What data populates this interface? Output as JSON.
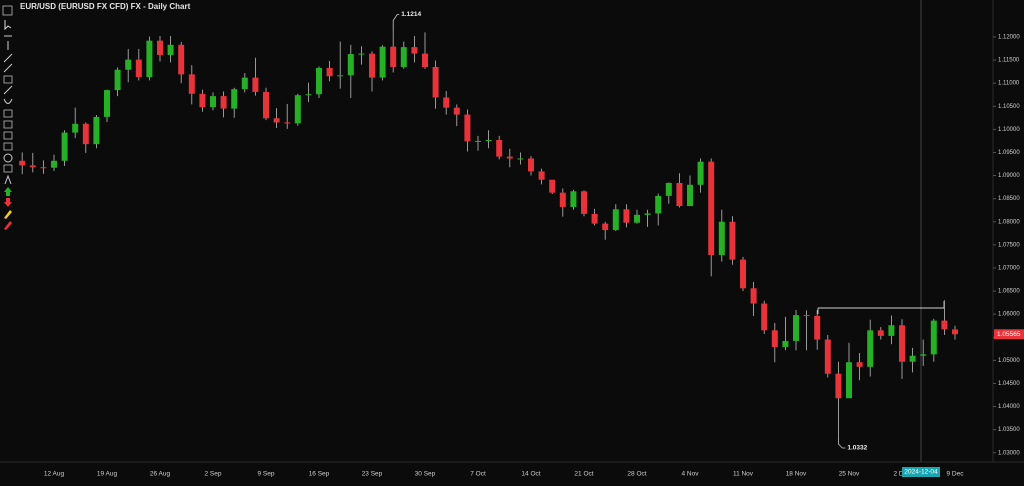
{
  "chart_data": {
    "type": "candlestick",
    "title": "EUR/USD (EURUSD FX CFD) FX - Daily Chart",
    "up_color": "#25b025",
    "down_color": "#e8333b",
    "categories": [
      null,
      null,
      null,
      "12 Aug",
      null,
      null,
      null,
      null,
      "19 Aug",
      null,
      null,
      null,
      null,
      "26 Aug",
      null,
      null,
      null,
      null,
      "2 Sep",
      null,
      null,
      null,
      null,
      "9 Sep",
      null,
      null,
      null,
      null,
      "16 Sep",
      null,
      null,
      null,
      null,
      "23 Sep",
      null,
      null,
      null,
      null,
      "30 Sep",
      null,
      null,
      null,
      null,
      "7 Oct",
      null,
      null,
      null,
      null,
      "14 Oct",
      null,
      null,
      null,
      null,
      "21 Oct",
      null,
      null,
      null,
      null,
      "28 Oct",
      null,
      null,
      null,
      null,
      "4 Nov",
      null,
      null,
      null,
      null,
      "11 Nov",
      null,
      null,
      null,
      null,
      "18 Nov",
      null,
      null,
      null,
      null,
      "25 Nov",
      null,
      null,
      null,
      null,
      "2 Dec",
      null,
      null,
      null,
      null,
      "9 Dec"
    ],
    "open": [
      1.0932,
      1.0922,
      1.0918,
      1.0917,
      1.0932,
      1.0993,
      1.1012,
      1.0968,
      1.1027,
      1.1085,
      1.1129,
      1.1151,
      1.1113,
      1.1192,
      1.1161,
      1.1183,
      1.1119,
      1.1077,
      1.1048,
      1.1072,
      1.1045,
      1.1087,
      1.1112,
      1.1081,
      1.1024,
      1.1015,
      1.1013,
      1.1074,
      1.1076,
      1.1133,
      1.1115,
      1.1117,
      1.1163,
      1.1164,
      1.1112,
      1.1179,
      1.1135,
      1.1178,
      1.1164,
      1.1135,
      1.1069,
      1.1047,
      1.1032,
      1.0974,
      1.0975,
      1.0977,
      1.0941,
      1.0937,
      1.0937,
      1.0909,
      1.0891,
      1.0863,
      1.0832,
      1.0866,
      1.0817,
      1.0796,
      1.0782,
      1.0827,
      1.0798,
      1.0815,
      1.0818,
      1.0856,
      1.0884,
      1.0834,
      1.088,
      1.093,
      1.0728,
      1.08,
      1.0718,
      1.0656,
      1.0623,
      1.0565,
      1.0529,
      1.0542,
      1.0598,
      1.0596,
      1.0545,
      1.0471,
      1.0418,
      1.0496,
      1.0486,
      1.0565,
      1.0553,
      1.0576,
      1.0497,
      1.051,
      1.0513,
      1.0586,
      1.0567
    ],
    "high": [
      1.095,
      1.0949,
      1.0933,
      1.0945,
      1.0998,
      1.1047,
      1.1015,
      1.1031,
      1.1086,
      1.1134,
      1.1174,
      1.1174,
      1.1201,
      1.1202,
      1.1202,
      1.1189,
      1.1139,
      1.1086,
      1.108,
      1.1082,
      1.109,
      1.1122,
      1.1155,
      1.109,
      1.1046,
      1.1055,
      1.1077,
      1.1101,
      1.1136,
      1.1148,
      1.119,
      1.1183,
      1.118,
      1.1169,
      1.1182,
      1.1214,
      1.119,
      1.1202,
      1.121,
      1.1149,
      1.1083,
      1.1054,
      1.1043,
      1.0986,
      1.0998,
      1.0986,
      1.0958,
      1.095,
      1.0942,
      1.0915,
      1.089,
      1.0872,
      1.0869,
      1.0868,
      1.0828,
      1.08,
      1.0838,
      1.0838,
      1.0826,
      1.0826,
      1.0861,
      1.0885,
      1.0905,
      1.09,
      1.0937,
      1.0937,
      1.0826,
      1.0812,
      1.0724,
      1.067,
      1.0629,
      1.0581,
      1.0594,
      1.0609,
      1.0608,
      1.0609,
      1.0555,
      1.0497,
      1.0538,
      1.0516,
      1.0588,
      1.0572,
      1.0597,
      1.0589,
      1.0527,
      1.0545,
      1.059,
      1.063,
      1.0575
    ],
    "low": [
      1.0903,
      1.0907,
      1.0904,
      1.091,
      1.0921,
      1.0981,
      1.0949,
      1.0959,
      1.1016,
      1.1072,
      1.1102,
      1.1106,
      1.1106,
      1.1147,
      1.1145,
      1.11,
      1.1054,
      1.1038,
      1.1041,
      1.1026,
      1.1025,
      1.108,
      1.1073,
      1.102,
      1.1003,
      1.1001,
      1.1008,
      1.1059,
      1.1068,
      1.1104,
      1.1088,
      1.1068,
      1.114,
      1.1082,
      1.1106,
      1.1123,
      1.1131,
      1.1145,
      1.1131,
      1.1045,
      1.1032,
      1.1007,
      1.0952,
      1.0954,
      1.0959,
      1.0935,
      1.0918,
      1.0924,
      1.09,
      1.0881,
      1.086,
      1.0811,
      1.0826,
      1.0812,
      1.0792,
      1.0761,
      1.078,
      1.0788,
      1.0796,
      1.0789,
      1.0792,
      1.0839,
      1.0831,
      1.0836,
      1.0863,
      1.0682,
      1.0714,
      1.0707,
      1.065,
      1.0596,
      1.0557,
      1.0496,
      1.0522,
      1.0522,
      1.0522,
      1.0523,
      1.0463,
      1.0332,
      1.0424,
      1.0457,
      1.0465,
      1.0545,
      1.0535,
      1.046,
      1.0474,
      1.0488,
      1.0497,
      1.0555,
      1.0545
    ],
    "close": [
      1.0922,
      1.0918,
      1.0917,
      1.0932,
      1.0993,
      1.1012,
      1.0968,
      1.1027,
      1.1085,
      1.1129,
      1.1151,
      1.1113,
      1.1192,
      1.1161,
      1.1183,
      1.1119,
      1.1077,
      1.1048,
      1.1072,
      1.1045,
      1.1087,
      1.1112,
      1.1081,
      1.1024,
      1.1015,
      1.1013,
      1.1074,
      1.1076,
      1.1133,
      1.1115,
      1.1117,
      1.1163,
      1.1164,
      1.1112,
      1.1179,
      1.1135,
      1.1178,
      1.1164,
      1.1135,
      1.1069,
      1.1047,
      1.1032,
      1.0974,
      1.0975,
      1.0977,
      1.0941,
      1.0937,
      1.0937,
      1.0909,
      1.0891,
      1.0863,
      1.0832,
      1.0866,
      1.0817,
      1.0796,
      1.0782,
      1.0827,
      1.0798,
      1.0815,
      1.0818,
      1.0856,
      1.0884,
      1.0834,
      1.088,
      1.093,
      1.0728,
      1.08,
      1.0718,
      1.0656,
      1.0623,
      1.0565,
      1.0529,
      1.0542,
      1.0598,
      1.0596,
      1.0545,
      1.0471,
      1.0418,
      1.0496,
      1.0486,
      1.0565,
      1.0553,
      1.0576,
      1.0497,
      1.051,
      1.0513,
      1.0586,
      1.0567,
      1.05565
    ],
    "ylim": [
      1.028,
      1.128
    ],
    "yticks": [
      {
        "value": 1.03,
        "label": "1.03000"
      },
      {
        "value": 1.035,
        "label": "1.03500"
      },
      {
        "value": 1.04,
        "label": "1.04000"
      },
      {
        "value": 1.045,
        "label": "1.04500"
      },
      {
        "value": 1.05,
        "label": "1.05000"
      },
      {
        "value": 1.055,
        "label": "1.05500"
      },
      {
        "value": 1.06,
        "label": "1.06000"
      },
      {
        "value": 1.065,
        "label": "1.06500"
      },
      {
        "value": 1.07,
        "label": "1.07000"
      },
      {
        "value": 1.075,
        "label": "1.07500"
      },
      {
        "value": 1.08,
        "label": "1.08000"
      },
      {
        "value": 1.085,
        "label": "1.08500"
      },
      {
        "value": 1.09,
        "label": "1.09000"
      },
      {
        "value": 1.095,
        "label": "1.09500"
      },
      {
        "value": 1.1,
        "label": "1.10000"
      },
      {
        "value": 1.105,
        "label": "1.10500"
      },
      {
        "value": 1.11,
        "label": "1.11000"
      },
      {
        "value": 1.115,
        "label": "1.11500"
      },
      {
        "value": 1.12,
        "label": "1.12000"
      }
    ],
    "high_label": 1.1214,
    "low_label": 1.0332,
    "last_price": 1.05565,
    "crosshair_label": "2024-12-04"
  }
}
